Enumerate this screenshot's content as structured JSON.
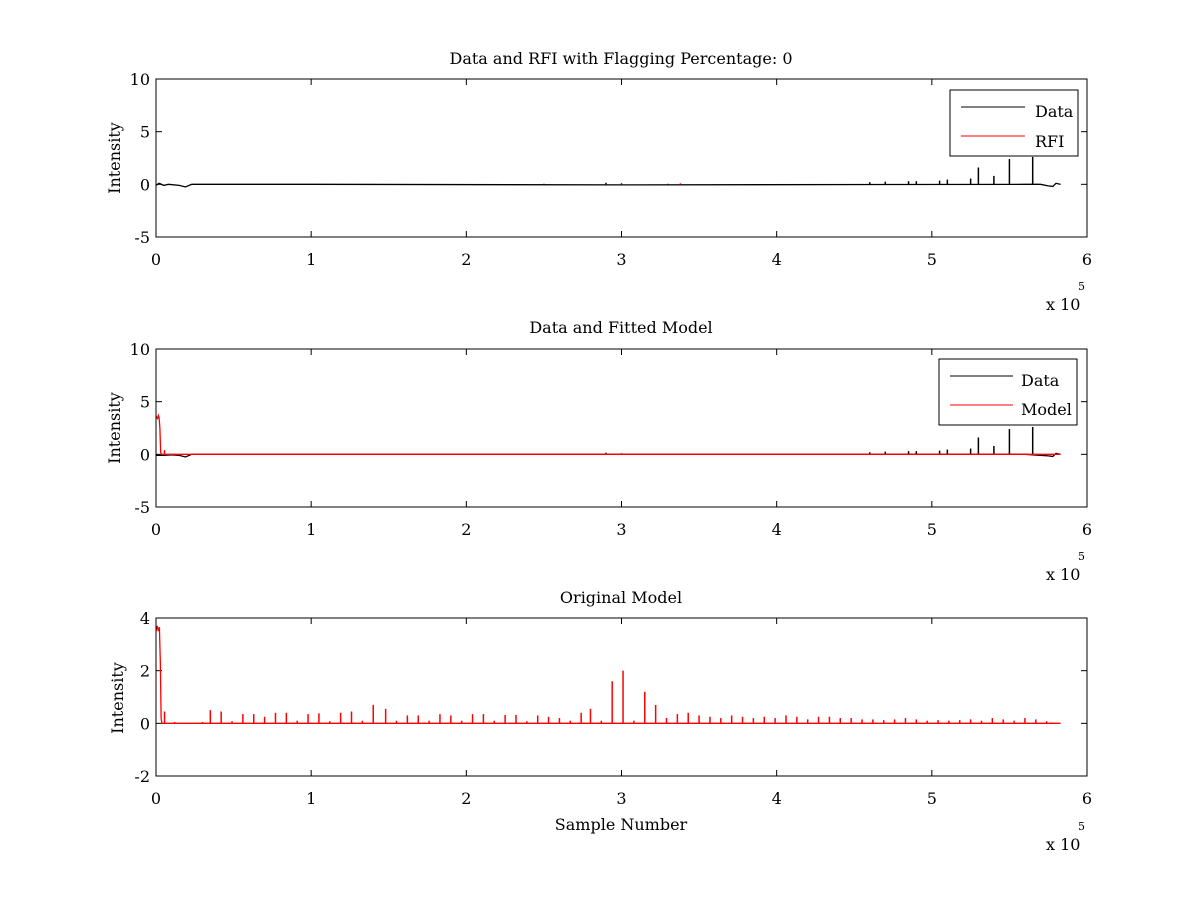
{
  "chart_data": [
    {
      "type": "line",
      "title": "Data and RFI with Flagging Percentage: 0",
      "xlabel": "",
      "ylabel": "Intensity",
      "xlim": [
        0,
        600000
      ],
      "ylim": [
        -5,
        10
      ],
      "xticks": [
        0,
        1,
        2,
        3,
        4,
        5,
        6
      ],
      "yticks": [
        -5,
        0,
        5,
        10
      ],
      "x_exponent_base": "x 10",
      "x_exponent_power": "5",
      "legend_placement": "top-right",
      "series": [
        {
          "name": "Data",
          "color": "#000000",
          "baseline": [
            [
              0,
              -0.1
            ],
            [
              2000,
              0.1
            ],
            [
              5000,
              -0.1
            ],
            [
              8000,
              0
            ],
            [
              15000,
              -0.1
            ],
            [
              19000,
              -0.25
            ],
            [
              23000,
              0
            ],
            [
              100000,
              0
            ],
            [
              300000,
              -0.05
            ],
            [
              560000,
              0
            ],
            [
              570000,
              0
            ],
            [
              575000,
              -0.15
            ],
            [
              578000,
              -0.2
            ],
            [
              580000,
              0.1
            ],
            [
              583000,
              0
            ]
          ],
          "spikes": [
            [
              550000,
              2.4
            ],
            [
              565000,
              2.6
            ],
            [
              530000,
              1.6
            ],
            [
              540000,
              0.8
            ],
            [
              525000,
              0.55
            ],
            [
              510000,
              0.45
            ],
            [
              505000,
              0.35
            ],
            [
              490000,
              0.3
            ],
            [
              485000,
              0.3
            ],
            [
              470000,
              0.25
            ],
            [
              460000,
              0.2
            ],
            [
              290000,
              0.15
            ],
            [
              300000,
              0.1
            ],
            [
              330000,
              0.05
            ],
            [
              250000,
              0.05
            ]
          ]
        },
        {
          "name": "RFI",
          "color": "#ff0000",
          "baseline": [],
          "spikes": [
            [
              338000,
              0.1
            ]
          ]
        }
      ]
    },
    {
      "type": "line",
      "title": "Data and Fitted Model",
      "xlabel": "",
      "ylabel": "Intensity",
      "xlim": [
        0,
        600000
      ],
      "ylim": [
        -5,
        10
      ],
      "xticks": [
        0,
        1,
        2,
        3,
        4,
        5,
        6
      ],
      "yticks": [
        -5,
        0,
        5,
        10
      ],
      "x_exponent_base": "x 10",
      "x_exponent_power": "5",
      "legend_placement": "top-right",
      "series": [
        {
          "name": "Data",
          "color": "#000000",
          "baseline": [
            [
              0,
              -0.1
            ],
            [
              5000,
              -0.1
            ],
            [
              10000,
              -0.05
            ],
            [
              15000,
              -0.1
            ],
            [
              19000,
              -0.25
            ],
            [
              23000,
              0
            ],
            [
              560000,
              0
            ],
            [
              575000,
              -0.15
            ],
            [
              578000,
              -0.2
            ],
            [
              580000,
              0.1
            ],
            [
              583000,
              0
            ]
          ],
          "spikes": [
            [
              550000,
              2.4
            ],
            [
              565000,
              2.6
            ],
            [
              530000,
              1.6
            ],
            [
              540000,
              0.8
            ],
            [
              525000,
              0.55
            ],
            [
              510000,
              0.45
            ],
            [
              505000,
              0.35
            ],
            [
              490000,
              0.3
            ],
            [
              485000,
              0.3
            ],
            [
              470000,
              0.25
            ],
            [
              460000,
              0.2
            ],
            [
              290000,
              0.15
            ],
            [
              300000,
              0.1
            ]
          ]
        },
        {
          "name": "Model",
          "color": "#ff0000",
          "baseline": [
            [
              0,
              3.6
            ],
            [
              1000,
              3.4
            ],
            [
              1500,
              3.7
            ],
            [
              2000,
              3.5
            ],
            [
              2500,
              2.5
            ],
            [
              3000,
              0.2
            ],
            [
              3500,
              0
            ],
            [
              583000,
              0
            ]
          ],
          "spikes": [
            [
              5500,
              0.4
            ],
            [
              12000,
              0.05
            ]
          ]
        }
      ]
    },
    {
      "type": "line",
      "title": "Original Model",
      "xlabel": "Sample Number",
      "ylabel": "Intensity",
      "xlim": [
        0,
        600000
      ],
      "ylim": [
        -2,
        4
      ],
      "xticks": [
        0,
        1,
        2,
        3,
        4,
        5,
        6
      ],
      "yticks": [
        -2,
        0,
        2,
        4
      ],
      "x_exponent_base": "x 10",
      "x_exponent_power": "5",
      "legend_placement": "none",
      "series": [
        {
          "name": "",
          "color": "#ff0000",
          "baseline": [
            [
              0,
              3.5
            ],
            [
              800,
              3.7
            ],
            [
              1500,
              3.5
            ],
            [
              2200,
              3.65
            ],
            [
              2800,
              2.3
            ],
            [
              3300,
              0.2
            ],
            [
              3800,
              0
            ],
            [
              583000,
              0
            ]
          ],
          "spikes": [
            [
              5500,
              0.45
            ],
            [
              12000,
              0.05
            ],
            [
              30000,
              0.05
            ],
            [
              35000,
              0.5
            ],
            [
              42000,
              0.45
            ],
            [
              49000,
              0.08
            ],
            [
              56000,
              0.35
            ],
            [
              63000,
              0.35
            ],
            [
              70000,
              0.25
            ],
            [
              77000,
              0.4
            ],
            [
              84000,
              0.4
            ],
            [
              91000,
              0.1
            ],
            [
              98000,
              0.35
            ],
            [
              105000,
              0.38
            ],
            [
              112000,
              0.08
            ],
            [
              119000,
              0.4
            ],
            [
              126000,
              0.45
            ],
            [
              133000,
              0.1
            ],
            [
              140000,
              0.7
            ],
            [
              148000,
              0.55
            ],
            [
              155000,
              0.1
            ],
            [
              162000,
              0.3
            ],
            [
              169000,
              0.3
            ],
            [
              176000,
              0.1
            ],
            [
              183000,
              0.35
            ],
            [
              190000,
              0.3
            ],
            [
              197000,
              0.1
            ],
            [
              204000,
              0.35
            ],
            [
              211000,
              0.35
            ],
            [
              218000,
              0.1
            ],
            [
              225000,
              0.32
            ],
            [
              232000,
              0.32
            ],
            [
              239000,
              0.08
            ],
            [
              246000,
              0.3
            ],
            [
              253000,
              0.25
            ],
            [
              260000,
              0.2
            ],
            [
              267000,
              0.1
            ],
            [
              274000,
              0.4
            ],
            [
              280000,
              0.55
            ],
            [
              287000,
              0.1
            ],
            [
              294000,
              1.6
            ],
            [
              301000,
              2.0
            ],
            [
              308000,
              0.1
            ],
            [
              315000,
              1.2
            ],
            [
              322000,
              0.7
            ],
            [
              329000,
              0.2
            ],
            [
              336000,
              0.35
            ],
            [
              343000,
              0.4
            ],
            [
              350000,
              0.3
            ],
            [
              357000,
              0.25
            ],
            [
              364000,
              0.2
            ],
            [
              371000,
              0.3
            ],
            [
              378000,
              0.25
            ],
            [
              385000,
              0.2
            ],
            [
              392000,
              0.25
            ],
            [
              399000,
              0.2
            ],
            [
              406000,
              0.3
            ],
            [
              413000,
              0.25
            ],
            [
              420000,
              0.15
            ],
            [
              427000,
              0.25
            ],
            [
              434000,
              0.25
            ],
            [
              441000,
              0.2
            ],
            [
              448000,
              0.2
            ],
            [
              455000,
              0.15
            ],
            [
              462000,
              0.15
            ],
            [
              469000,
              0.12
            ],
            [
              476000,
              0.15
            ],
            [
              483000,
              0.2
            ],
            [
              490000,
              0.15
            ],
            [
              497000,
              0.1
            ],
            [
              504000,
              0.12
            ],
            [
              511000,
              0.1
            ],
            [
              518000,
              0.12
            ],
            [
              525000,
              0.15
            ],
            [
              532000,
              0.1
            ],
            [
              539000,
              0.2
            ],
            [
              546000,
              0.15
            ],
            [
              553000,
              0.1
            ],
            [
              560000,
              0.2
            ],
            [
              567000,
              0.15
            ],
            [
              574000,
              0.08
            ]
          ]
        }
      ]
    }
  ]
}
